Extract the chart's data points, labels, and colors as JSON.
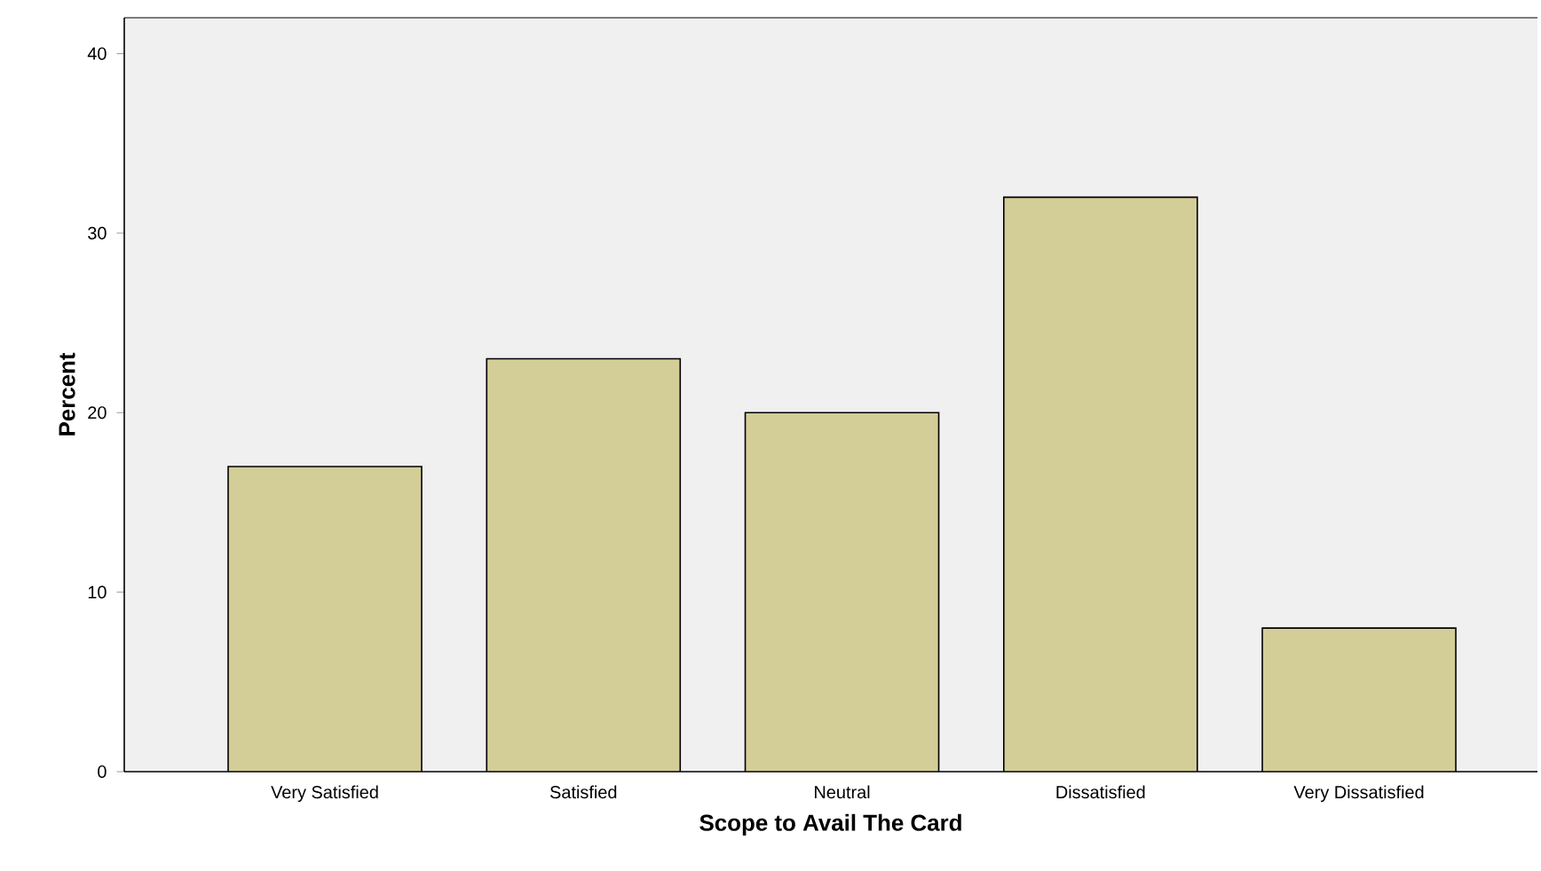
{
  "chart_data": {
    "type": "bar",
    "xlabel": "Scope to Avail The Card",
    "ylabel": "Percent",
    "categories": [
      "Very Satisfied",
      "Satisfied",
      "Neutral",
      "Dissatisfied",
      "Very Dissatisfied"
    ],
    "values": [
      17,
      23,
      20,
      32,
      8
    ],
    "color": "#d3cd98",
    "ylim": [
      0,
      42
    ],
    "yticks": [
      0,
      10,
      20,
      30,
      40
    ],
    "grid": false
  }
}
